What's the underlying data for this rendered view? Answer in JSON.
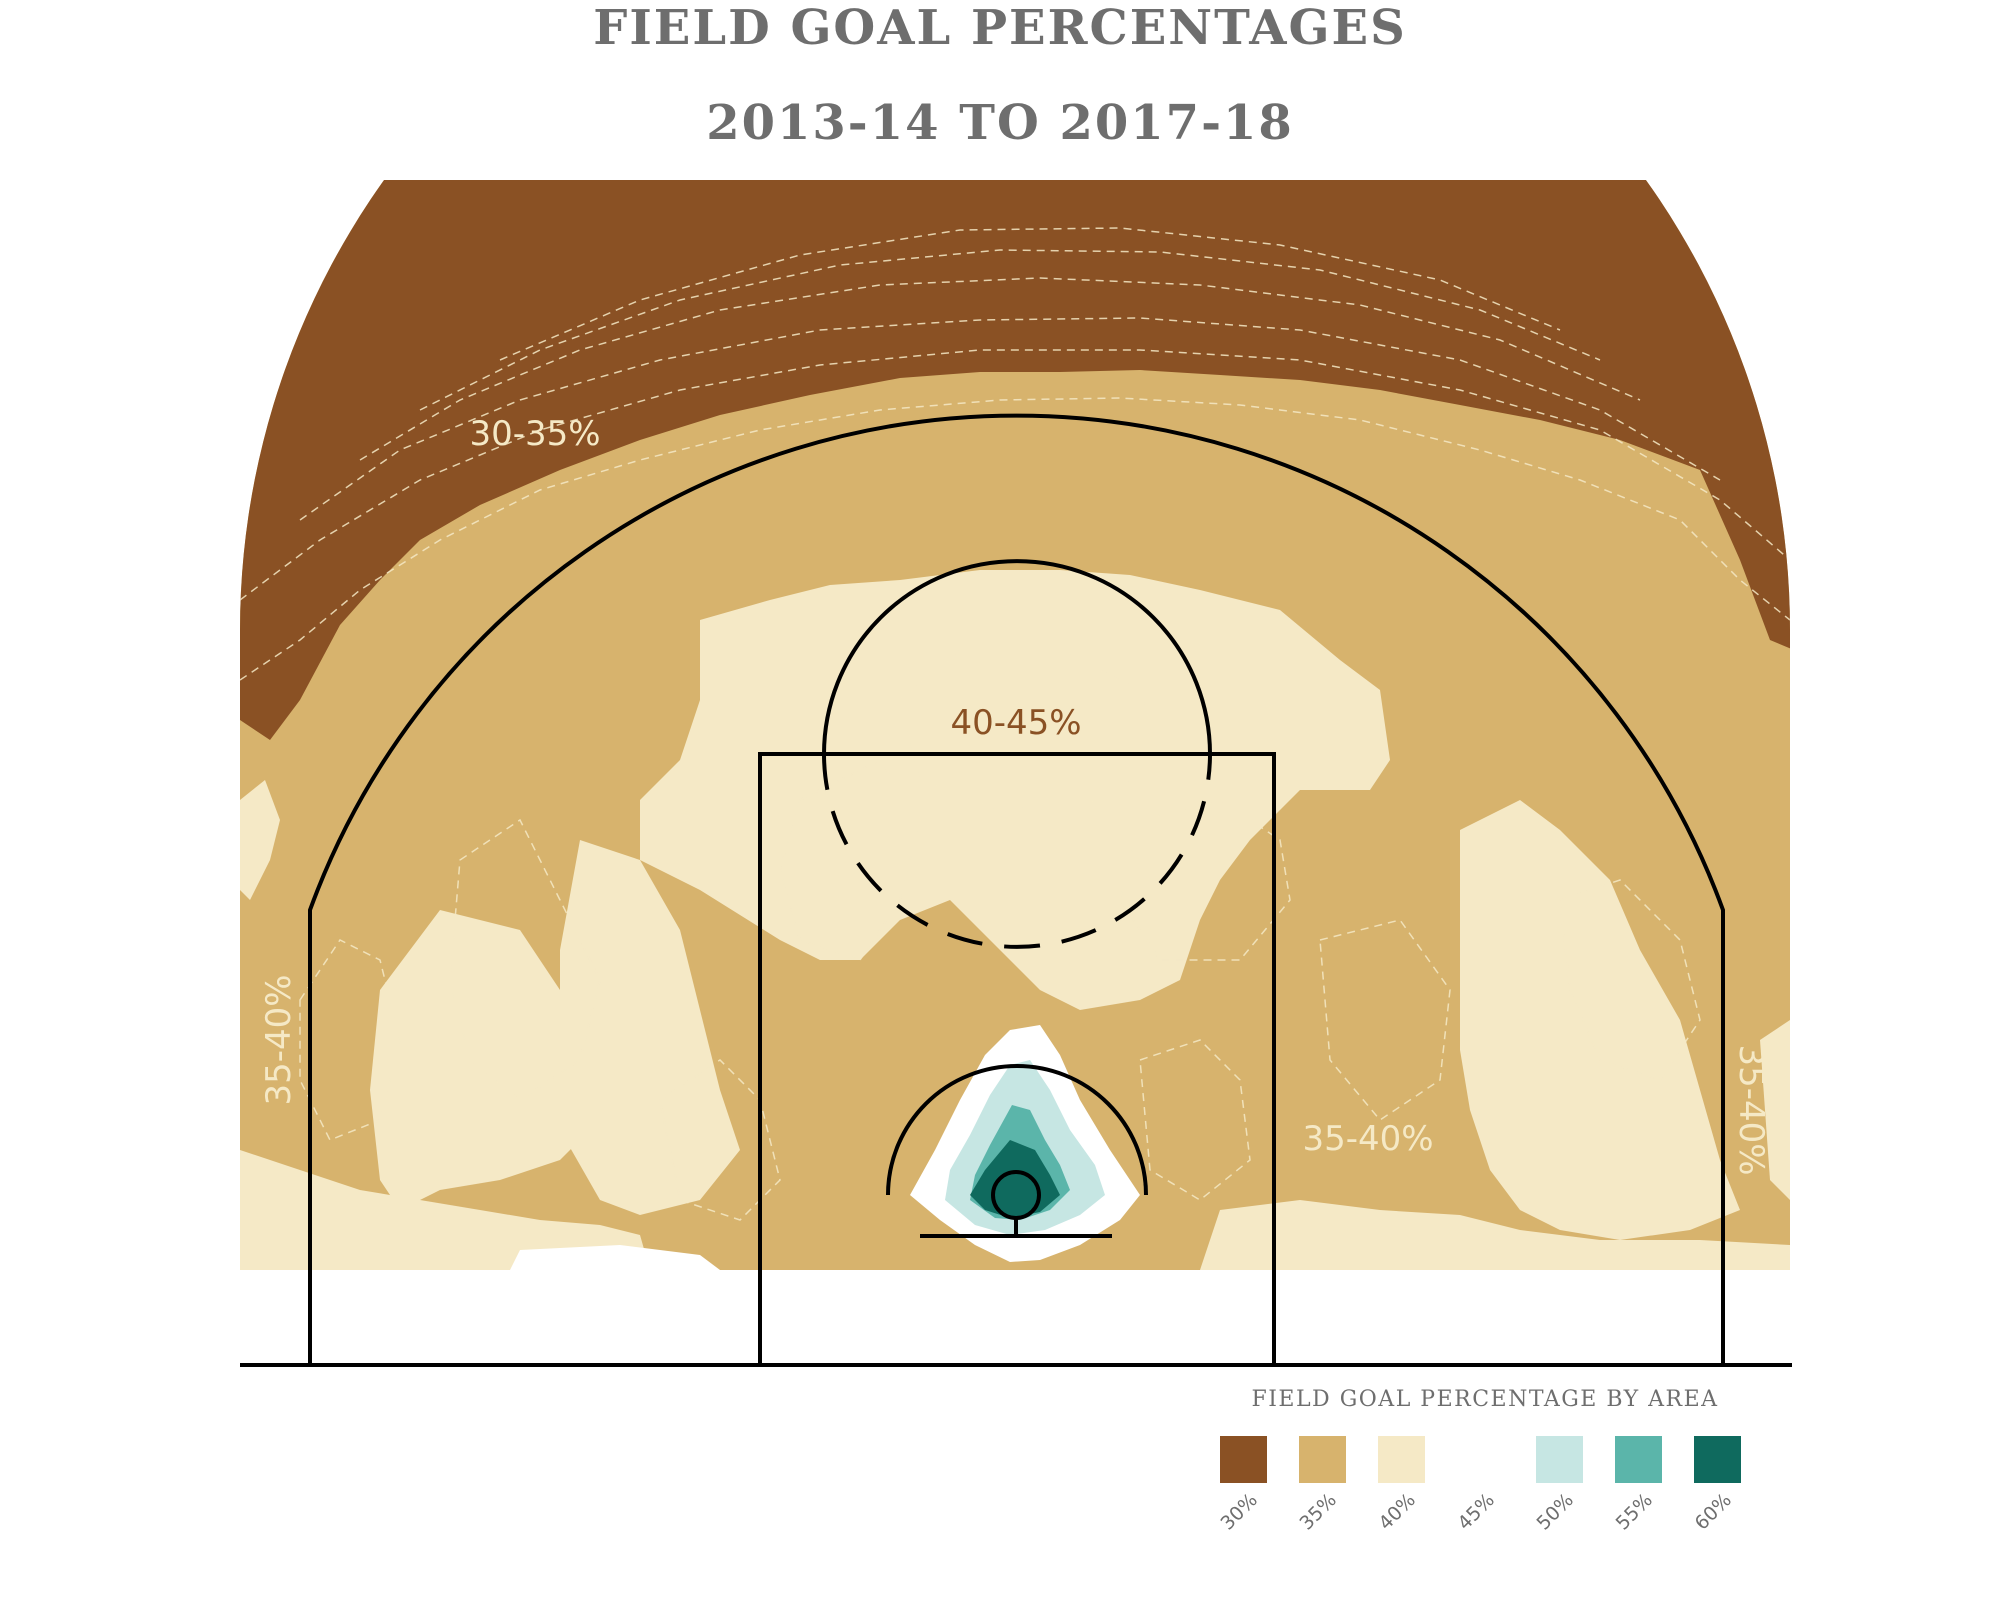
{
  "chart_data": {
    "type": "heatmap",
    "subtype": "basketball-shot-chart-contour",
    "title": "FIELD GOAL PERCENTAGES",
    "subtitle": "2013-14 TO 2017-18",
    "colorbar": {
      "title": "FIELD GOAL PERCENTAGE BY AREA",
      "levels": [
        {
          "label": "30%",
          "value": 30,
          "color": "#8a5124"
        },
        {
          "label": "35%",
          "value": 35,
          "color": "#d7b36d"
        },
        {
          "label": "40%",
          "value": 40,
          "color": "#f5e9c6"
        },
        {
          "label": "45%",
          "value": 45,
          "color": "#ffffff"
        },
        {
          "label": "50%",
          "value": 50,
          "color": "#c6e6e3"
        },
        {
          "label": "55%",
          "value": 55,
          "color": "#5bb5aa"
        },
        {
          "label": "60%",
          "value": 60,
          "color": "#0f6a5e"
        }
      ]
    },
    "zone_annotations": [
      {
        "text": "30-35%",
        "zone": "deep arc (beyond 3pt, top)",
        "color": "#f5e9c6"
      },
      {
        "text": "40-45%",
        "zone": "free throw circle",
        "color": "#8a5124"
      },
      {
        "text": "35-40%",
        "zone": "left corner",
        "color": "#f5e9c6"
      },
      {
        "text": "35-40%",
        "zone": "right wing midrange",
        "color": "#f5e9c6"
      },
      {
        "text": "35-40%",
        "zone": "right corner",
        "color": "#f5e9c6"
      }
    ]
  }
}
